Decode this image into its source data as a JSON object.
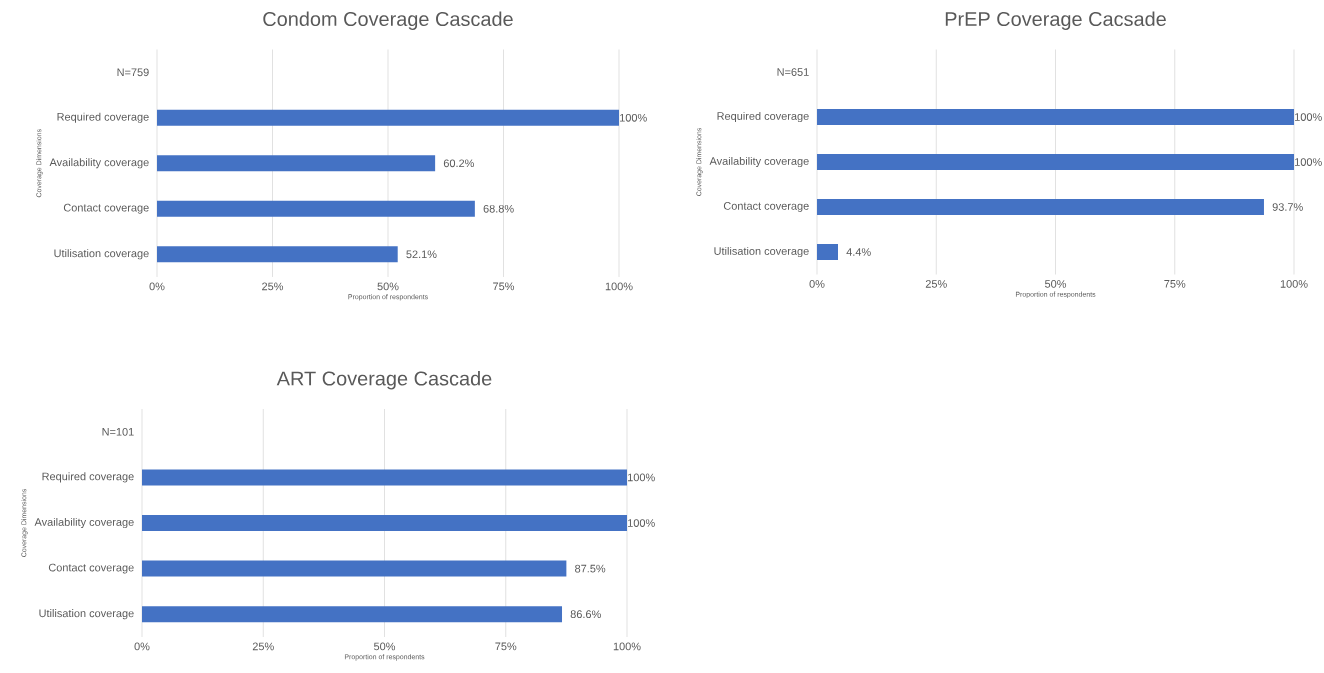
{
  "chart_data": [
    {
      "type": "bar",
      "orientation": "horizontal",
      "title": "Condom Coverage Cascade",
      "xlabel": "Proportion of respondents",
      "ylabel": "Coverage Dimensions",
      "categories": [
        "N=759",
        "Required coverage",
        "Availability coverage",
        "Contact coverage",
        "Utilisation coverage"
      ],
      "values": [
        null,
        100,
        60.2,
        68.8,
        52.1
      ],
      "value_labels": [
        null,
        "100%",
        "60.2%",
        "68.8%",
        "52.1%"
      ],
      "color": "#4472c4",
      "xlim": [
        0,
        100
      ],
      "xticks": [
        {
          "value": 0,
          "label": "0%"
        },
        {
          "value": 25,
          "label": "25%"
        },
        {
          "value": 50,
          "label": "50%"
        },
        {
          "value": 75,
          "label": "75%"
        },
        {
          "value": 100,
          "label": "100%"
        }
      ],
      "grid": "x"
    },
    {
      "type": "bar",
      "orientation": "horizontal",
      "title": "PrEP Coverage Cacsade",
      "xlabel": "Proportion of respondents",
      "ylabel": "Coverage Dimensions",
      "categories": [
        "N=651",
        "Required coverage",
        "Availability coverage",
        "Contact coverage",
        "Utilisation coverage"
      ],
      "values": [
        null,
        100,
        100,
        93.7,
        4.4
      ],
      "value_labels": [
        null,
        "100%",
        "100%",
        "93.7%",
        "4.4%"
      ],
      "color": "#4472c4",
      "xlim": [
        0,
        100
      ],
      "xticks": [
        {
          "value": 0,
          "label": "0%"
        },
        {
          "value": 25,
          "label": "25%"
        },
        {
          "value": 50,
          "label": "50%"
        },
        {
          "value": 75,
          "label": "75%"
        },
        {
          "value": 100,
          "label": "100%"
        }
      ],
      "grid": "x"
    },
    {
      "type": "bar",
      "orientation": "horizontal",
      "title": "ART Coverage Cascade",
      "xlabel": "Proportion of respondents",
      "ylabel": "Coverage Dimensions",
      "categories": [
        "N=101",
        "Required coverage",
        "Availability coverage",
        "Contact coverage",
        "Utilisation coverage"
      ],
      "values": [
        null,
        100,
        100,
        87.5,
        86.6
      ],
      "value_labels": [
        null,
        "100%",
        "100%",
        "87.5%",
        "86.6%"
      ],
      "color": "#4472c4",
      "xlim": [
        0,
        100
      ],
      "xticks": [
        {
          "value": 0,
          "label": "0%"
        },
        {
          "value": 25,
          "label": "25%"
        },
        {
          "value": 50,
          "label": "50%"
        },
        {
          "value": 75,
          "label": "75%"
        },
        {
          "value": 100,
          "label": "100%"
        }
      ],
      "grid": "x"
    }
  ]
}
